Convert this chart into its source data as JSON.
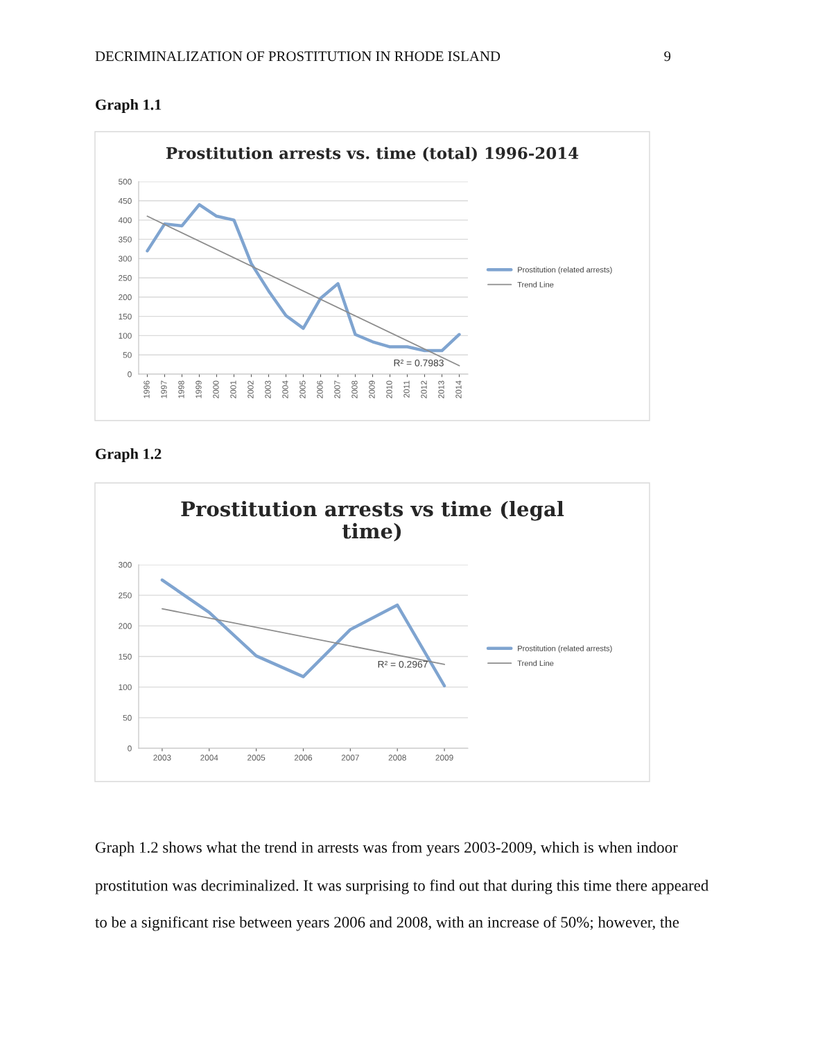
{
  "chart_data": [
    {
      "type": "line",
      "title": "Prostitution arrests vs. time (total) 1996-2014",
      "x": [
        1996,
        1997,
        1998,
        1999,
        2000,
        2001,
        2002,
        2003,
        2004,
        2005,
        2006,
        2007,
        2008,
        2009,
        2010,
        2011,
        2012,
        2013,
        2014
      ],
      "series": [
        {
          "name": "Prostitution (related arrests)",
          "color": "#7fa4d0",
          "values": [
            320,
            390,
            385,
            440,
            410,
            400,
            287,
            216,
            152,
            119,
            197,
            235,
            103,
            84,
            71,
            71,
            61,
            61,
            103
          ]
        },
        {
          "name": "Trend Line",
          "color": "#8c8c8c",
          "x": [
            1996,
            2014
          ],
          "values": [
            410,
            22
          ]
        }
      ],
      "xlim": [
        1995.5,
        2014.5
      ],
      "xticks": [
        1996,
        1997,
        1998,
        1999,
        2000,
        2001,
        2002,
        2003,
        2004,
        2005,
        2006,
        2007,
        2008,
        2009,
        2010,
        2011,
        2012,
        2013,
        2014
      ],
      "ylim": [
        0,
        500
      ],
      "yticks": [
        0,
        50,
        100,
        150,
        200,
        250,
        300,
        350,
        400,
        450,
        500
      ],
      "grid": "y",
      "legend": "right",
      "marker": "none",
      "line_style": "solid",
      "annotations": [
        "DECRIMINALIZATION OF PROSTITUTION IN RHODE ISLAND",
        "9",
        "Graph 1.1",
        "R² = 0.7983"
      ]
    },
    {
      "type": "line",
      "title": "Prostitution arrests vs time (legal\ntime)",
      "x": [
        2003,
        2004,
        2005,
        2006,
        2007,
        2008,
        2009
      ],
      "series": [
        {
          "name": "Prostitution (related arrests)",
          "color": "#7fa4d0",
          "values": [
            275,
            222,
            151,
            117,
            194,
            234,
            102
          ]
        },
        {
          "name": "Trend Line",
          "color": "#8c8c8c",
          "x": [
            2003,
            2009
          ],
          "values": [
            228,
            137
          ]
        }
      ],
      "xlim": [
        2002.5,
        2009.5
      ],
      "xticks": [
        2003,
        2004,
        2005,
        2006,
        2007,
        2008,
        2009
      ],
      "ylim": [
        0,
        300
      ],
      "yticks": [
        0,
        50,
        100,
        150,
        200,
        250,
        300
      ],
      "grid": "y",
      "legend": "right",
      "marker": "none",
      "line_style": "solid",
      "annotations": [
        "Graph 1.2",
        "R² = 0.2967",
        "Graph 1.2 shows what the trend in arrests was from years 2003-2009, which is when indoor",
        "prostitution was decriminalized. It was surprising to find out that during this time there appeared",
        "to be a significant rise between years 2006 and 2008, with an increase of 50%; however, the"
      ]
    }
  ]
}
